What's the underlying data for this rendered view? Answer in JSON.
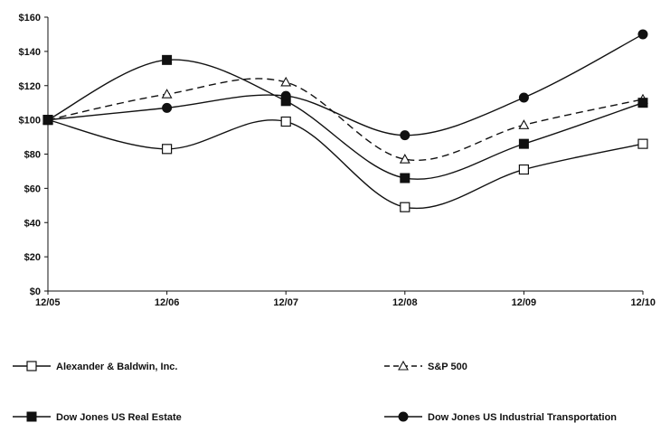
{
  "chart_data": {
    "type": "line",
    "categories": [
      "12/05",
      "12/06",
      "12/07",
      "12/08",
      "12/09",
      "12/10"
    ],
    "y_tick_labels": [
      "$0",
      "$20",
      "$40",
      "$60",
      "$80",
      "$100",
      "$120",
      "$140",
      "$160"
    ],
    "ylim": [
      0,
      160
    ],
    "ytick_step": 20,
    "grid": false,
    "legend_position": "bottom",
    "series": [
      {
        "name": "Alexander & Baldwin, Inc.",
        "values": [
          100,
          83,
          99,
          49,
          71,
          86
        ],
        "color": "#111111",
        "marker": "open-square",
        "dashed": false
      },
      {
        "name": "S&P 500",
        "values": [
          100,
          115,
          122,
          77,
          97,
          112
        ],
        "color": "#111111",
        "marker": "open-triangle",
        "dashed": true
      },
      {
        "name": "Dow Jones US Real Estate",
        "values": [
          100,
          135,
          111,
          66,
          86,
          110
        ],
        "color": "#111111",
        "marker": "filled-square",
        "dashed": false
      },
      {
        "name": "Dow Jones US Industrial Transportation",
        "values": [
          100,
          107,
          114,
          91,
          113,
          150
        ],
        "color": "#111111",
        "marker": "filled-circle",
        "dashed": false
      }
    ]
  }
}
